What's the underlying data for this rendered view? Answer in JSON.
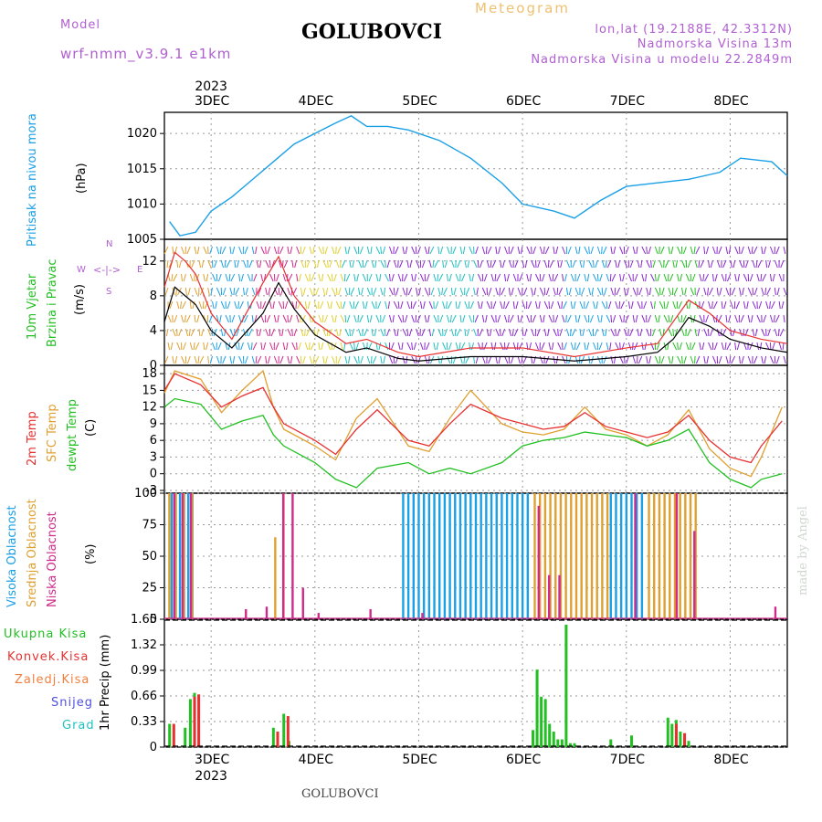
{
  "header": {
    "model_label": "Model",
    "model_value": "wrf-nmm_v3.9.1 e1km",
    "title": "GOLUBOVCI",
    "meteogram_label": "Meteogram",
    "coords": "lon,lat (19.2188E, 42.3312N)",
    "elevation": "Nadmorska Visina 13m",
    "model_elevation": "Nadmorska Visina u modelu 22.2849m"
  },
  "footer": {
    "station": "GOLUBOVCI",
    "credit": "made by Angel"
  },
  "colors": {
    "pressure": "#1aa0e6",
    "wind_speed": "#000000",
    "gust": "#e83030",
    "t2m": "#e83030",
    "tsfc": "#e0a030",
    "td": "#22c022",
    "cloud_high": "#1aa0e6",
    "cloud_mid": "#e0a030",
    "cloud_low": "#d02a8a",
    "precip_total": "#22c022",
    "precip_conv": "#e83030"
  },
  "panel_labels": {
    "pressure": {
      "name": "Pritisak na nivou mora",
      "unit": "(hPa)"
    },
    "wind": {
      "name1": "10m Vjetar",
      "name2": "Brzina i Pravac",
      "unit": "(m/s)",
      "compass_n": "N",
      "compass_w": "W",
      "compass_e": "E",
      "compass_s": "S"
    },
    "temp": {
      "name1": "2m Temp",
      "name2": "SFC Temp",
      "name3": "dewpt Temp",
      "unit": "(C)"
    },
    "cloud": {
      "name1": "Visoka Oblacnost",
      "name2": "Srednja Oblacnost",
      "name3": "Niska Oblacnost",
      "unit": "(%)"
    },
    "precip": {
      "unit": "1hr Precip (mm)",
      "legend": [
        "Ukupna Kisa",
        "Konvek.Kisa",
        "Zaledj.Kisa",
        "Snijeg",
        "Grad"
      ]
    }
  },
  "chart_data": [
    {
      "type": "line",
      "panel": "pressure",
      "x_ticks": [
        "3DEC",
        "4DEC",
        "5DEC",
        "6DEC",
        "7DEC",
        "8DEC"
      ],
      "year_label": "2023",
      "ylim": [
        1005,
        1023
      ],
      "y_ticks": [
        1005,
        1010,
        1015,
        1020
      ],
      "series": [
        {
          "x": [
            2.6,
            2.7,
            2.85,
            3.0,
            3.2,
            3.4,
            3.6,
            3.8,
            4.0,
            4.2,
            4.35,
            4.5,
            4.7,
            4.9,
            5.2,
            5.5,
            5.8,
            6.0,
            6.3,
            6.5,
            6.75,
            7.0,
            7.3,
            7.6,
            7.9,
            8.1,
            8.4,
            8.55
          ],
          "y": [
            1007.5,
            1005.5,
            1006.0,
            1009.0,
            1011.0,
            1013.5,
            1016.0,
            1018.5,
            1020.0,
            1021.5,
            1022.5,
            1021.0,
            1021.0,
            1020.5,
            1019.0,
            1016.5,
            1013.0,
            1010.0,
            1009.0,
            1008.0,
            1010.5,
            1012.5,
            1013.0,
            1013.5,
            1014.5,
            1016.5,
            1016.0,
            1014.0
          ]
        }
      ]
    },
    {
      "type": "line",
      "panel": "wind",
      "ylim": [
        0,
        14.5
      ],
      "y_ticks": [
        0,
        4,
        8,
        12
      ],
      "series": [
        {
          "x": [
            2.55,
            2.65,
            2.75,
            2.85,
            3.0,
            3.2,
            3.5,
            3.65,
            3.8,
            4.0,
            4.3,
            4.5,
            4.8,
            5.0,
            5.5,
            6.0,
            6.5,
            7.0,
            7.3,
            7.45,
            7.6,
            7.8,
            8.0,
            8.3,
            8.55
          ],
          "y": [
            5.0,
            9.0,
            8.0,
            7.0,
            4.0,
            2.0,
            6.0,
            9.5,
            6.5,
            3.5,
            1.5,
            2.0,
            0.8,
            0.5,
            1.0,
            1.0,
            0.5,
            1.0,
            1.5,
            3.0,
            5.5,
            4.5,
            3.0,
            2.0,
            1.5
          ]
        },
        {
          "x": [
            2.55,
            2.65,
            2.75,
            2.85,
            3.0,
            3.2,
            3.5,
            3.65,
            3.8,
            4.0,
            4.3,
            4.5,
            4.8,
            5.0,
            5.5,
            6.0,
            6.5,
            7.0,
            7.3,
            7.45,
            7.6,
            7.8,
            8.0,
            8.3,
            8.55
          ],
          "y": [
            9.0,
            13.0,
            12.0,
            10.5,
            6.0,
            3.0,
            9.5,
            12.5,
            8.0,
            5.0,
            2.5,
            3.0,
            1.5,
            1.0,
            2.0,
            2.0,
            1.0,
            2.0,
            2.5,
            5.0,
            7.5,
            6.0,
            4.0,
            3.0,
            2.5
          ]
        }
      ]
    },
    {
      "type": "line",
      "panel": "temperature",
      "ylim": [
        -3.5,
        19.5
      ],
      "y_ticks": [
        -3,
        0,
        3,
        6,
        9,
        12,
        15,
        18
      ],
      "series": [
        {
          "x": [
            2.55,
            2.65,
            2.9,
            3.1,
            3.3,
            3.5,
            3.6,
            3.7,
            4.0,
            4.2,
            4.4,
            4.6,
            4.9,
            5.1,
            5.3,
            5.5,
            5.8,
            6.0,
            6.2,
            6.4,
            6.6,
            6.8,
            7.0,
            7.2,
            7.4,
            7.6,
            7.8,
            8.0,
            8.2,
            8.3,
            8.5
          ],
          "y": [
            15.0,
            18.0,
            16.0,
            12.0,
            14.0,
            15.5,
            12.0,
            9.0,
            6.0,
            3.5,
            8.0,
            11.5,
            6.0,
            5.0,
            9.0,
            12.5,
            10.0,
            9.0,
            8.0,
            8.5,
            11.0,
            8.5,
            7.5,
            6.5,
            7.5,
            10.5,
            6.0,
            3.0,
            2.0,
            5.0,
            9.5
          ]
        },
        {
          "x": [
            2.55,
            2.65,
            2.9,
            3.1,
            3.3,
            3.5,
            3.6,
            3.7,
            4.0,
            4.2,
            4.4,
            4.6,
            4.9,
            5.1,
            5.3,
            5.5,
            5.8,
            6.0,
            6.2,
            6.4,
            6.6,
            6.8,
            7.0,
            7.2,
            7.4,
            7.6,
            7.8,
            8.0,
            8.2,
            8.3,
            8.5
          ],
          "y": [
            14.5,
            18.5,
            17.0,
            11.0,
            15.0,
            18.5,
            12.0,
            8.0,
            5.0,
            2.5,
            10.0,
            13.5,
            5.0,
            4.0,
            10.0,
            15.0,
            9.0,
            7.5,
            7.0,
            8.0,
            12.0,
            8.0,
            7.0,
            5.0,
            7.0,
            11.5,
            4.5,
            1.0,
            -0.5,
            3.0,
            12.0
          ]
        },
        {
          "x": [
            2.55,
            2.65,
            2.9,
            3.1,
            3.3,
            3.5,
            3.6,
            3.7,
            4.0,
            4.2,
            4.4,
            4.6,
            4.9,
            5.1,
            5.3,
            5.5,
            5.8,
            6.0,
            6.2,
            6.4,
            6.6,
            6.8,
            7.0,
            7.2,
            7.4,
            7.6,
            7.8,
            8.0,
            8.2,
            8.3,
            8.5
          ],
          "y": [
            12.0,
            13.5,
            12.5,
            8.0,
            9.5,
            10.5,
            7.0,
            5.0,
            2.0,
            -1.0,
            -2.5,
            1.0,
            2.0,
            0.0,
            1.0,
            0.0,
            2.0,
            5.0,
            6.0,
            6.5,
            7.5,
            7.0,
            6.5,
            5.0,
            6.0,
            8.0,
            2.0,
            -1.0,
            -2.5,
            -1.0,
            0.0
          ]
        }
      ]
    },
    {
      "type": "bar",
      "panel": "cloud",
      "ylim": [
        0,
        100
      ],
      "y_ticks": [
        0,
        25,
        50,
        75,
        100
      ],
      "series": [
        {
          "x": [
            2.62,
            2.66,
            2.7,
            2.74,
            2.78,
            2.82,
            4.85,
            4.9,
            4.95,
            5.0,
            5.05,
            5.1,
            5.15,
            5.2,
            5.25,
            5.3,
            5.35,
            5.4,
            5.45,
            5.5,
            5.55,
            5.6,
            5.65,
            5.7,
            5.75,
            5.8,
            5.85,
            5.9,
            5.95,
            6.0,
            6.05,
            6.85,
            6.9,
            6.95,
            7.0,
            7.05,
            7.1,
            7.15
          ],
          "y": [
            100,
            100,
            100,
            100,
            100,
            100,
            100,
            100,
            100,
            100,
            100,
            100,
            100,
            100,
            100,
            100,
            100,
            100,
            100,
            100,
            100,
            100,
            100,
            100,
            100,
            100,
            100,
            100,
            100,
            100,
            100,
            100,
            100,
            100,
            100,
            100,
            100,
            100
          ]
        },
        {
          "x": [
            2.58,
            2.64,
            2.72,
            2.8,
            3.6,
            3.68,
            6.1,
            6.15,
            6.2,
            6.25,
            6.3,
            6.35,
            6.4,
            6.45,
            6.5,
            6.55,
            6.6,
            6.65,
            6.7,
            6.75,
            6.8,
            7.2,
            7.25,
            7.3,
            7.35,
            7.4,
            7.45,
            7.5,
            7.55,
            7.6,
            7.65
          ],
          "y": [
            100,
            100,
            100,
            100,
            65,
            100,
            100,
            100,
            100,
            100,
            100,
            100,
            100,
            100,
            100,
            100,
            100,
            100,
            100,
            100,
            100,
            100,
            100,
            100,
            100,
            100,
            100,
            100,
            100,
            100,
            100
          ]
        },
        {
          "x": [
            2.61,
            2.69,
            2.77,
            3.3,
            3.5,
            3.66,
            3.75,
            3.85,
            4.0,
            4.5,
            5.0,
            6.12,
            6.22,
            6.32,
            7.05,
            7.45,
            7.62,
            8.4
          ],
          "y": [
            100,
            100,
            100,
            8,
            10,
            100,
            100,
            25,
            5,
            8,
            5,
            90,
            35,
            35,
            100,
            100,
            70,
            10
          ]
        }
      ]
    },
    {
      "type": "bar",
      "panel": "precip",
      "ylim": [
        0,
        1.65
      ],
      "y_ticks": [
        0,
        0.33,
        0.66,
        0.99,
        1.32,
        1.65
      ],
      "series": [
        {
          "x": [
            2.6,
            2.75,
            2.8,
            2.84,
            3.6,
            3.7,
            3.75,
            6.1,
            6.14,
            6.18,
            6.22,
            6.26,
            6.3,
            6.34,
            6.38,
            6.42,
            6.46,
            6.5,
            6.85,
            7.05,
            7.4,
            7.44,
            7.48,
            7.52,
            7.56,
            7.6
          ],
          "y": [
            0.3,
            0.25,
            0.62,
            0.7,
            0.25,
            0.43,
            0.08,
            0.22,
            1.0,
            0.65,
            0.62,
            0.3,
            0.2,
            0.1,
            0.1,
            1.58,
            0.05,
            0.05,
            0.1,
            0.15,
            0.38,
            0.3,
            0.35,
            0.2,
            0.12,
            0.08
          ]
        },
        {
          "x": [
            2.61,
            2.81,
            2.85,
            3.61,
            3.71,
            7.45,
            7.53
          ],
          "y": [
            0.3,
            0.65,
            0.68,
            0.2,
            0.4,
            0.3,
            0.18
          ]
        }
      ]
    }
  ]
}
